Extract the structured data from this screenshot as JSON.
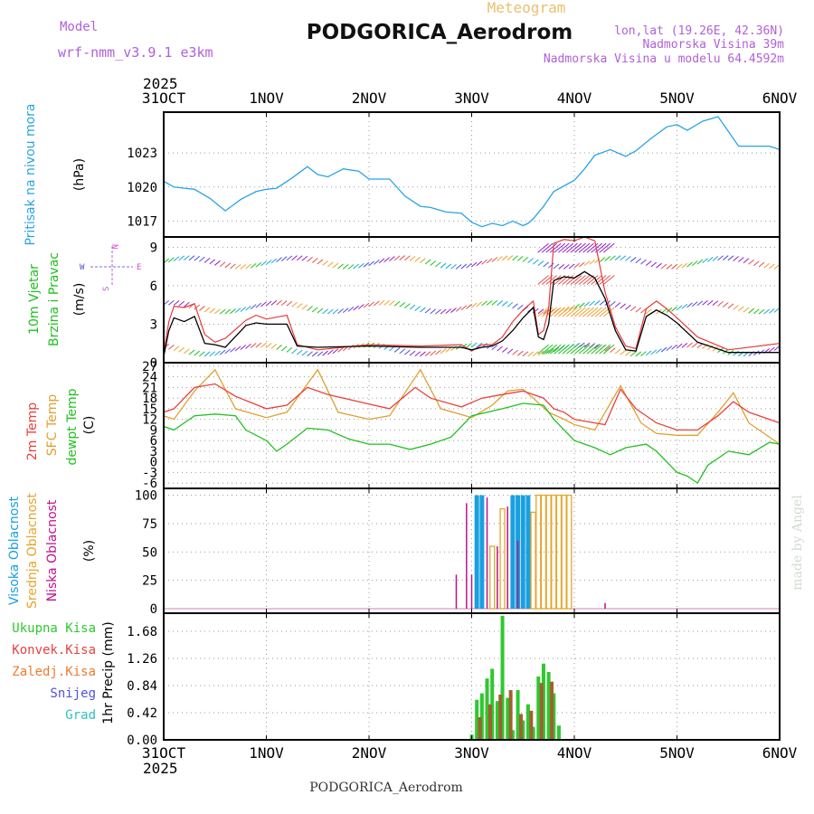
{
  "header": {
    "model_label": "Model",
    "model_name": "wrf-nmm_v3.9.1  e3km",
    "kind": "Meteogram",
    "station": "PODGORICA_Aerodrom",
    "coords": "lon,lat (19.26E, 42.36N)",
    "elevation": "Nadmorska Visina 39m",
    "model_elevation": "Nadmorska Visina u modelu 64.4592m"
  },
  "footer": {
    "station": "PODGORICA_Aerodrom",
    "credit": "made by Angel"
  },
  "colors": {
    "pressure": "#29a3e6",
    "wind_speed": "#000000",
    "gust": "#e63a3a",
    "t2m": "#e8413c",
    "tsfc": "#e0a030",
    "dewpt": "#20c020",
    "cloud_high": "#19a0e0",
    "cloud_mid": "#e6a52a",
    "cloud_low": "#c0108a",
    "precip_total": "#2fc82f",
    "precip_conv": "#e84040",
    "precip_ice": "#f07a30",
    "precip_snow": "#5050e0",
    "precip_grad": "#30c0c0",
    "wind_lower": "#20c020"
  },
  "chart_data": [
    {
      "id": "pressure",
      "type": "line",
      "ylabel": "(hPa)",
      "title": "Pritisak na nivou mora",
      "year": "2025",
      "xticks": [
        "31OCT",
        "1NOV",
        "2NOV",
        "3NOV",
        "4NOV",
        "5NOV",
        "6NOV"
      ],
      "xlim": [
        0,
        6
      ],
      "ylim": [
        1015.6,
        1026.6
      ],
      "yticks": [
        1017,
        1020,
        1023
      ],
      "x": [
        0,
        0.1,
        0.2,
        0.3,
        0.45,
        0.6,
        0.75,
        0.9,
        1.0,
        1.1,
        1.25,
        1.4,
        1.5,
        1.6,
        1.75,
        1.9,
        2.0,
        2.1,
        2.2,
        2.35,
        2.5,
        2.6,
        2.75,
        2.9,
        3.0,
        3.1,
        3.2,
        3.3,
        3.4,
        3.5,
        3.55,
        3.6,
        3.7,
        3.8,
        3.9,
        4.0,
        4.1,
        4.2,
        4.35,
        4.5,
        4.6,
        4.75,
        4.9,
        5.0,
        5.1,
        5.25,
        5.4,
        5.5,
        5.6,
        5.75,
        5.9,
        6.0
      ],
      "values": [
        1020.5,
        1020.0,
        1019.9,
        1019.8,
        1019.0,
        1017.9,
        1018.9,
        1019.6,
        1019.8,
        1019.9,
        1020.8,
        1021.8,
        1021.1,
        1020.9,
        1021.6,
        1021.4,
        1020.7,
        1020.7,
        1020.7,
        1019.2,
        1018.3,
        1018.2,
        1017.8,
        1017.7,
        1016.9,
        1016.5,
        1016.8,
        1016.6,
        1017.0,
        1016.6,
        1016.8,
        1017.2,
        1018.3,
        1019.6,
        1020.1,
        1020.6,
        1021.6,
        1022.8,
        1023.3,
        1022.7,
        1023.2,
        1024.3,
        1025.3,
        1025.5,
        1025.0,
        1025.8,
        1026.2,
        1024.9,
        1023.6,
        1023.6,
        1023.6,
        1023.3
      ]
    },
    {
      "id": "wind",
      "type": "line",
      "ylabel": "(m/s)",
      "title_top": "10m Vjetar",
      "title_bottom": "Brzina i Pravac",
      "xlim": [
        0,
        6
      ],
      "ylim": [
        0,
        9.8
      ],
      "yticks": [
        0,
        3,
        6,
        9
      ],
      "compass": {
        "north": "N",
        "south": "S",
        "east": "E",
        "west": "W"
      },
      "series": [
        {
          "name": "10m speed",
          "x": [
            0,
            0.05,
            0.1,
            0.2,
            0.3,
            0.4,
            0.5,
            0.6,
            0.8,
            0.9,
            1.0,
            1.2,
            1.3,
            1.5,
            2.0,
            2.5,
            2.9,
            3.0,
            3.1,
            3.2,
            3.3,
            3.4,
            3.5,
            3.6,
            3.65,
            3.7,
            3.75,
            3.8,
            3.9,
            4.0,
            4.1,
            4.2,
            4.3,
            4.4,
            4.5,
            4.6,
            4.7,
            4.8,
            4.9,
            5.0,
            5.2,
            5.5,
            6.0
          ],
          "values": [
            0.5,
            2.5,
            3.5,
            3.2,
            3.6,
            1.5,
            1.4,
            1.2,
            2.9,
            3.1,
            3.0,
            3.0,
            1.3,
            1.2,
            1.3,
            1.2,
            1.2,
            1.0,
            1.2,
            1.3,
            1.7,
            2.5,
            3.5,
            4.3,
            2.0,
            1.8,
            3.0,
            6.4,
            6.7,
            6.6,
            7.1,
            6.6,
            5.0,
            2.5,
            1.0,
            0.9,
            3.6,
            4.1,
            3.7,
            3.1,
            1.6,
            0.8,
            0.8
          ]
        },
        {
          "name": "gust",
          "x": [
            0,
            0.05,
            0.1,
            0.2,
            0.3,
            0.4,
            0.5,
            0.6,
            0.8,
            0.9,
            1.0,
            1.2,
            1.3,
            1.5,
            2.0,
            2.5,
            2.9,
            3.0,
            3.1,
            3.2,
            3.3,
            3.4,
            3.5,
            3.6,
            3.65,
            3.7,
            3.75,
            3.8,
            3.9,
            4.0,
            4.1,
            4.2,
            4.3,
            4.4,
            4.5,
            4.6,
            4.7,
            4.8,
            4.9,
            5.0,
            5.2,
            5.5,
            6.0
          ],
          "values": [
            0.8,
            3.2,
            4.4,
            4.3,
            4.6,
            2.2,
            1.6,
            1.9,
            3.3,
            3.7,
            3.4,
            3.7,
            1.4,
            1.0,
            1.4,
            1.3,
            1.4,
            0.9,
            1.4,
            1.4,
            2.0,
            3.2,
            4.1,
            4.8,
            2.2,
            2.5,
            4.2,
            9.3,
            9.6,
            9.5,
            9.8,
            9.5,
            5.5,
            2.8,
            1.3,
            1.1,
            4.2,
            4.8,
            4.2,
            3.5,
            2.0,
            1.0,
            1.5
          ]
        }
      ]
    },
    {
      "id": "temperature",
      "type": "line",
      "ylabel": "(C)",
      "titles": [
        "2m Temp",
        "SFC Temp",
        "dewpt Temp"
      ],
      "xlim": [
        0,
        6
      ],
      "ylim": [
        -7.5,
        28
      ],
      "yticks": [
        -6,
        -3,
        0,
        3,
        6,
        9,
        12,
        15,
        18,
        21,
        24,
        27
      ],
      "series": [
        {
          "name": "2m Temp",
          "x": [
            0,
            0.1,
            0.3,
            0.5,
            0.7,
            1.0,
            1.2,
            1.4,
            1.6,
            1.9,
            2.2,
            2.45,
            2.6,
            2.9,
            3.1,
            3.3,
            3.5,
            3.7,
            3.8,
            3.9,
            4.0,
            4.1,
            4.3,
            4.45,
            4.6,
            4.8,
            5.0,
            5.2,
            5.4,
            5.55,
            5.7,
            6.0
          ],
          "values": [
            14,
            15,
            21,
            22,
            18.5,
            15,
            16,
            21,
            19,
            17,
            15,
            21,
            18,
            15.5,
            18,
            19,
            20,
            18,
            15,
            14,
            12,
            11.5,
            10.5,
            20.5,
            15,
            11,
            9,
            9,
            13,
            17,
            14,
            11
          ]
        },
        {
          "name": "SFC Temp",
          "x": [
            0,
            0.1,
            0.3,
            0.5,
            0.7,
            1.0,
            1.2,
            1.5,
            1.7,
            2.0,
            2.2,
            2.5,
            2.7,
            3.0,
            3.2,
            3.35,
            3.5,
            3.6,
            3.75,
            3.9,
            4.0,
            4.2,
            4.45,
            4.65,
            4.8,
            5.0,
            5.2,
            5.4,
            5.55,
            5.7,
            6.0
          ],
          "values": [
            13,
            12,
            20,
            26,
            15,
            12.5,
            14,
            26,
            14,
            12,
            13,
            26,
            15,
            12.5,
            16,
            20,
            20.5,
            18,
            14,
            12,
            10.5,
            9,
            21.5,
            11,
            8,
            7.5,
            7.5,
            14,
            19.5,
            11,
            5
          ]
        },
        {
          "name": "dewpt Temp",
          "x": [
            0,
            0.1,
            0.2,
            0.3,
            0.5,
            0.7,
            0.8,
            1.0,
            1.1,
            1.2,
            1.4,
            1.6,
            1.8,
            2.0,
            2.2,
            2.4,
            2.6,
            2.8,
            3.0,
            3.3,
            3.5,
            3.7,
            3.8,
            4.0,
            4.2,
            4.35,
            4.5,
            4.7,
            4.8,
            4.9,
            5.0,
            5.1,
            5.2,
            5.3,
            5.5,
            5.7,
            5.9,
            6.0
          ],
          "values": [
            10,
            9,
            11,
            13,
            13.5,
            13,
            9,
            6,
            3,
            5,
            9.5,
            9,
            6.5,
            5,
            5,
            3.5,
            5,
            7,
            13,
            15,
            16.5,
            16,
            12,
            6,
            4,
            2,
            4,
            5,
            3,
            0,
            -3,
            -4,
            -6,
            -1,
            3,
            2,
            5.5,
            5
          ]
        }
      ]
    },
    {
      "id": "clouds",
      "type": "bar",
      "ylabel": "(%)",
      "titles": [
        "Visoka Oblacnost",
        "Srednja Oblacnost",
        "Niska Oblacnost"
      ],
      "xlim": [
        0,
        6
      ],
      "ylim": [
        -4,
        106
      ],
      "yticks": [
        0,
        25,
        50,
        75,
        100
      ],
      "series": [
        {
          "name": "Visoka",
          "x": [
            3.05,
            3.1,
            3.4,
            3.45,
            3.5,
            3.55
          ],
          "values": [
            100,
            100,
            100,
            100,
            100,
            100
          ]
        },
        {
          "name": "Srednja",
          "x": [
            3.2,
            3.3,
            3.6,
            3.65,
            3.7,
            3.75,
            3.8,
            3.85,
            3.9,
            3.95
          ],
          "values": [
            55,
            88,
            85,
            100,
            100,
            100,
            100,
            100,
            100,
            100
          ]
        },
        {
          "name": "Niska",
          "x": [
            2.85,
            2.95,
            3.0,
            3.15,
            3.25,
            3.35,
            3.45,
            4.3
          ],
          "values": [
            30,
            93,
            30,
            98,
            55,
            90,
            60,
            5
          ]
        }
      ]
    },
    {
      "id": "precip",
      "type": "bar",
      "ylabel": "1hr Precip (mm)",
      "legend": [
        "Ukupna Kisa",
        "Konvek.Kisa",
        "Zaledj.Kisa",
        "Snijeg",
        "Grad"
      ],
      "year": "2025",
      "xticks": [
        "31OCT",
        "1NOV",
        "2NOV",
        "3NOV",
        "4NOV",
        "5NOV",
        "6NOV"
      ],
      "xlim": [
        0,
        6
      ],
      "ylim": [
        0,
        1.96
      ],
      "yticks": [
        0,
        0.42,
        0.84,
        1.26,
        1.68
      ],
      "series": [
        {
          "name": "Ukupna Kisa",
          "x": [
            3.0,
            3.05,
            3.1,
            3.15,
            3.2,
            3.25,
            3.3,
            3.35,
            3.4,
            3.45,
            3.5,
            3.55,
            3.6,
            3.65,
            3.7,
            3.75,
            3.8,
            3.85
          ],
          "values": [
            0.08,
            0.62,
            0.72,
            0.95,
            1.1,
            0.6,
            1.92,
            0.65,
            0.15,
            0.77,
            0.3,
            0.55,
            0.2,
            0.98,
            1.18,
            1.05,
            0.72,
            0.22
          ]
        },
        {
          "name": "Konvek.Kisa",
          "x": [
            3.08,
            3.18,
            3.28,
            3.38,
            3.48,
            3.58,
            3.68,
            3.78
          ],
          "values": [
            0.35,
            0.55,
            0.7,
            0.77,
            0.4,
            0.45,
            0.88,
            0.9
          ]
        }
      ]
    }
  ]
}
